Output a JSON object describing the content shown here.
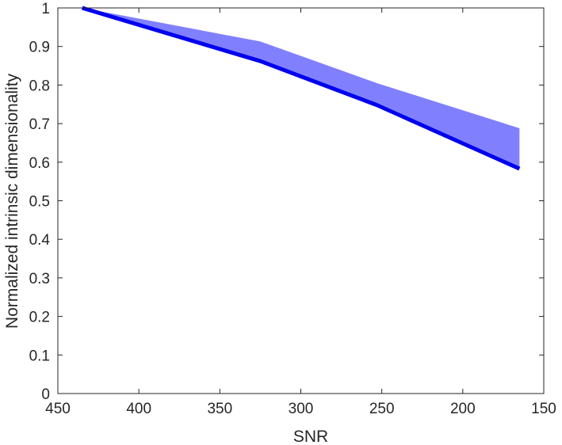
{
  "chart_data": {
    "type": "area",
    "title": "",
    "xlabel": "SNR",
    "ylabel": "Normalized intrinsic dimensionality",
    "xlim": [
      450,
      150
    ],
    "ylim": [
      0,
      1
    ],
    "x_reversed": true,
    "xticks": [
      450,
      400,
      350,
      300,
      250,
      200,
      150
    ],
    "yticks": [
      0,
      0.1,
      0.2,
      0.3,
      0.4,
      0.5,
      0.6,
      0.7,
      0.8,
      0.9,
      1
    ],
    "xtick_labels": [
      "450",
      "400",
      "350",
      "300",
      "250",
      "200",
      "150"
    ],
    "ytick_labels": [
      "0",
      "0.1",
      "0.2",
      "0.3",
      "0.4",
      "0.5",
      "0.6",
      "0.7",
      "0.8",
      "0.9",
      "1"
    ],
    "grid": false,
    "legend": false,
    "x": [
      435,
      325,
      253,
      165
    ],
    "series": [
      {
        "values": [
          1.0,
          0.862,
          0.748,
          0.583
        ],
        "color": "#0000ee",
        "style": "line"
      },
      {
        "lower": [
          1.0,
          0.862,
          0.748,
          0.583
        ],
        "upper": [
          1.0,
          0.913,
          0.805,
          0.688
        ],
        "color": "#8080ff",
        "style": "band"
      }
    ]
  }
}
